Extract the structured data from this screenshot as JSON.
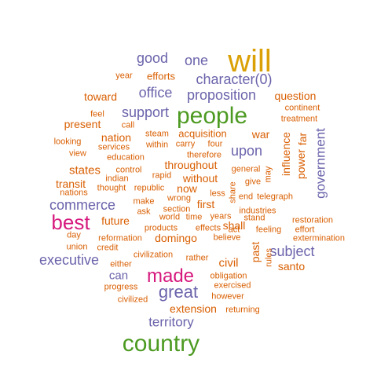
{
  "colors": {
    "orange": "#D95F02",
    "purple": "#6A63AB",
    "green": "#4D9A22",
    "gold": "#DAA005",
    "magenta": "#D6197D"
  },
  "words": [
    {
      "text": "will",
      "color": "gold"
    },
    {
      "text": "good",
      "color": "purple"
    },
    {
      "text": "one",
      "color": "purple"
    },
    {
      "text": "year",
      "color": "orange"
    },
    {
      "text": "efforts",
      "color": "orange"
    },
    {
      "text": "character(0)",
      "color": "purple"
    },
    {
      "text": "toward",
      "color": "orange"
    },
    {
      "text": "office",
      "color": "purple"
    },
    {
      "text": "proposition",
      "color": "purple"
    },
    {
      "text": "question",
      "color": "orange"
    },
    {
      "text": "continent",
      "color": "orange"
    },
    {
      "text": "feel",
      "color": "orange"
    },
    {
      "text": "support",
      "color": "purple"
    },
    {
      "text": "people",
      "color": "green"
    },
    {
      "text": "treatment",
      "color": "orange"
    },
    {
      "text": "present",
      "color": "orange"
    },
    {
      "text": "call",
      "color": "orange"
    },
    {
      "text": "nation",
      "color": "orange"
    },
    {
      "text": "steam",
      "color": "orange"
    },
    {
      "text": "acquisition",
      "color": "orange"
    },
    {
      "text": "war",
      "color": "orange"
    },
    {
      "text": "looking",
      "color": "orange"
    },
    {
      "text": "within",
      "color": "orange"
    },
    {
      "text": "carry",
      "color": "orange"
    },
    {
      "text": "four",
      "color": "orange"
    },
    {
      "text": "services",
      "color": "orange"
    },
    {
      "text": "view",
      "color": "orange"
    },
    {
      "text": "therefore",
      "color": "orange"
    },
    {
      "text": "upon",
      "color": "purple"
    },
    {
      "text": "education",
      "color": "orange"
    },
    {
      "text": "throughout",
      "color": "orange"
    },
    {
      "text": "influence",
      "color": "orange"
    },
    {
      "text": "power",
      "color": "orange"
    },
    {
      "text": "far",
      "color": "orange"
    },
    {
      "text": "government",
      "color": "purple"
    },
    {
      "text": "states",
      "color": "orange"
    },
    {
      "text": "control",
      "color": "orange"
    },
    {
      "text": "general",
      "color": "orange"
    },
    {
      "text": "may",
      "color": "orange"
    },
    {
      "text": "indian",
      "color": "orange"
    },
    {
      "text": "rapid",
      "color": "orange"
    },
    {
      "text": "without",
      "color": "orange"
    },
    {
      "text": "transit",
      "color": "orange"
    },
    {
      "text": "give",
      "color": "orange"
    },
    {
      "text": "thought",
      "color": "orange"
    },
    {
      "text": "republic",
      "color": "orange"
    },
    {
      "text": "now",
      "color": "orange"
    },
    {
      "text": "share",
      "color": "orange"
    },
    {
      "text": "nations",
      "color": "orange"
    },
    {
      "text": "less",
      "color": "orange"
    },
    {
      "text": "end",
      "color": "orange"
    },
    {
      "text": "telegraph",
      "color": "orange"
    },
    {
      "text": "commerce",
      "color": "purple"
    },
    {
      "text": "make",
      "color": "orange"
    },
    {
      "text": "wrong",
      "color": "orange"
    },
    {
      "text": "first",
      "color": "orange"
    },
    {
      "text": "ask",
      "color": "orange"
    },
    {
      "text": "section",
      "color": "orange"
    },
    {
      "text": "industries",
      "color": "orange"
    },
    {
      "text": "best",
      "color": "magenta"
    },
    {
      "text": "future",
      "color": "orange"
    },
    {
      "text": "world",
      "color": "orange"
    },
    {
      "text": "time",
      "color": "orange"
    },
    {
      "text": "years",
      "color": "orange"
    },
    {
      "text": "stand",
      "color": "orange"
    },
    {
      "text": "restoration",
      "color": "orange"
    },
    {
      "text": "products",
      "color": "orange"
    },
    {
      "text": "effects",
      "color": "orange"
    },
    {
      "text": "act",
      "color": "orange"
    },
    {
      "text": "shall",
      "color": "orange"
    },
    {
      "text": "feeling",
      "color": "orange"
    },
    {
      "text": "effort",
      "color": "orange"
    },
    {
      "text": "day",
      "color": "orange"
    },
    {
      "text": "reformation",
      "color": "orange"
    },
    {
      "text": "domingo",
      "color": "orange"
    },
    {
      "text": "believe",
      "color": "orange"
    },
    {
      "text": "extermination",
      "color": "orange"
    },
    {
      "text": "union",
      "color": "orange"
    },
    {
      "text": "credit",
      "color": "orange"
    },
    {
      "text": "past",
      "color": "orange"
    },
    {
      "text": "subject",
      "color": "purple"
    },
    {
      "text": "executive",
      "color": "purple"
    },
    {
      "text": "civilization",
      "color": "orange"
    },
    {
      "text": "rather",
      "color": "orange"
    },
    {
      "text": "civil",
      "color": "orange"
    },
    {
      "text": "rules",
      "color": "orange"
    },
    {
      "text": "santo",
      "color": "orange"
    },
    {
      "text": "either",
      "color": "orange"
    },
    {
      "text": "can",
      "color": "purple"
    },
    {
      "text": "made",
      "color": "magenta"
    },
    {
      "text": "obligation",
      "color": "orange"
    },
    {
      "text": "progress",
      "color": "orange"
    },
    {
      "text": "great",
      "color": "purple"
    },
    {
      "text": "exercised",
      "color": "orange"
    },
    {
      "text": "civilized",
      "color": "orange"
    },
    {
      "text": "however",
      "color": "orange"
    },
    {
      "text": "extension",
      "color": "orange"
    },
    {
      "text": "returning",
      "color": "orange"
    },
    {
      "text": "territory",
      "color": "purple"
    },
    {
      "text": "country",
      "color": "green"
    }
  ]
}
